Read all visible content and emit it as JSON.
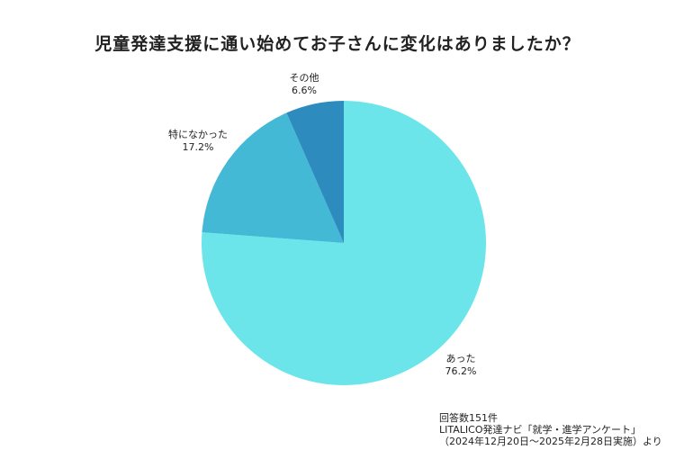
{
  "chart_data": {
    "type": "pie",
    "title": "児童発達支援に通い始めてお子さんに変化はありましたか？",
    "start_angle_deg": 0,
    "direction": "clockwise",
    "slices": [
      {
        "name": "あった",
        "value": 76.2,
        "percent_label": "76.2%",
        "color": "#6ce5ea"
      },
      {
        "name": "特になかった",
        "value": 17.2,
        "percent_label": "17.2%",
        "color": "#44b9d6"
      },
      {
        "name": "その他",
        "value": 6.6,
        "percent_label": "6.6%",
        "color": "#2e8bbd"
      }
    ]
  },
  "source": {
    "line1": "回答数151件",
    "line2": "LITALICO発達ナビ「就学・進学アンケート」",
    "line3": "（2024年12月20日〜2025年2月28日実施）より"
  }
}
